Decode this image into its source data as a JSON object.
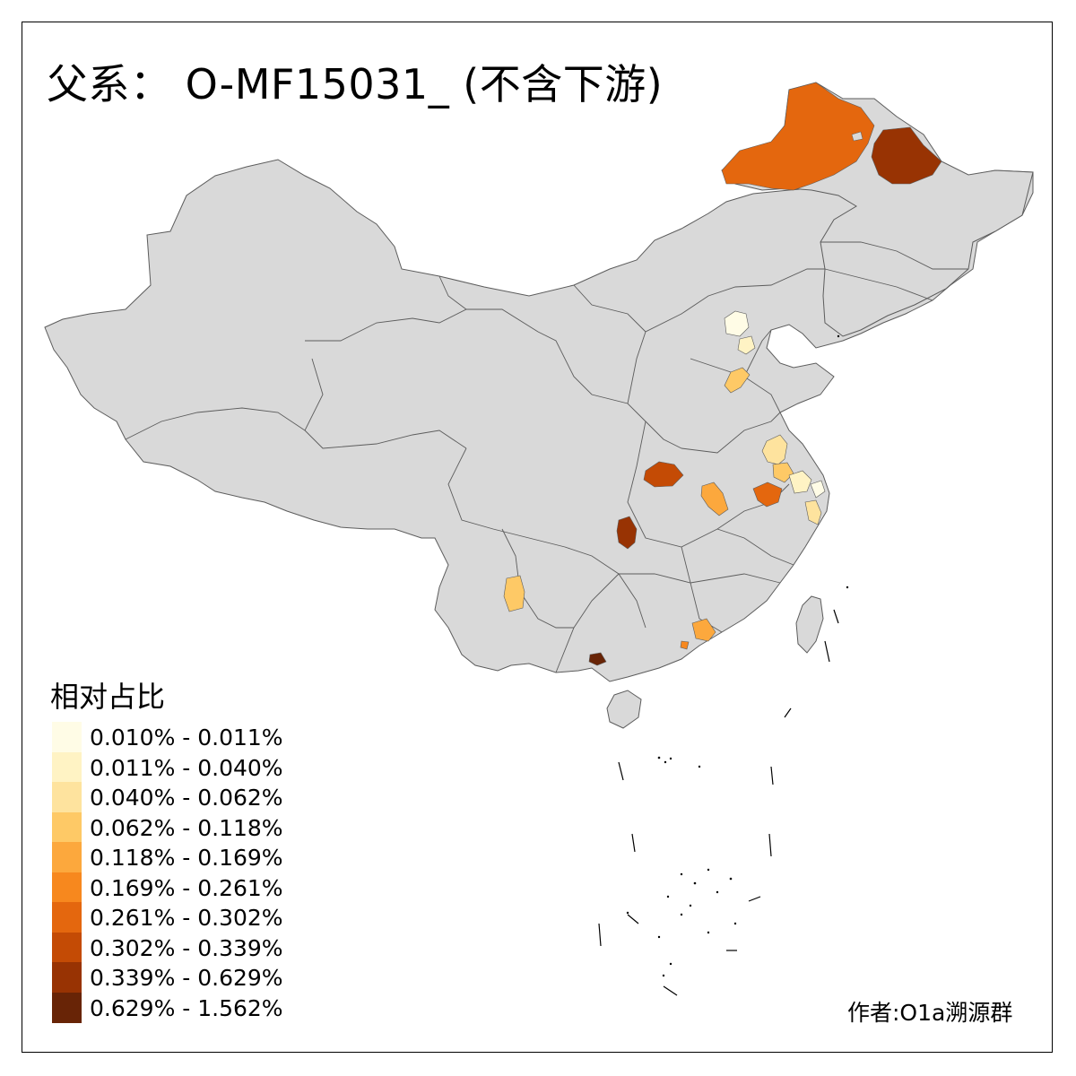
{
  "title": "父系： O-MF15031_ (不含下游)",
  "credit": "作者:O1a溯源群",
  "legend": {
    "title": "相对占比",
    "items": [
      {
        "label": "0.010% - 0.011%",
        "color": "#FFFCE6"
      },
      {
        "label": "0.011% - 0.040%",
        "color": "#FFF3C4"
      },
      {
        "label": "0.040% - 0.062%",
        "color": "#FEE39E"
      },
      {
        "label": "0.062% - 0.118%",
        "color": "#FEC966"
      },
      {
        "label": "0.118% - 0.169%",
        "color": "#FCA83D"
      },
      {
        "label": "0.169% - 0.261%",
        "color": "#F7881E"
      },
      {
        "label": "0.261% - 0.302%",
        "color": "#E4670E"
      },
      {
        "label": "0.302% - 0.339%",
        "color": "#C44B05"
      },
      {
        "label": "0.339% - 0.629%",
        "color": "#983303"
      },
      {
        "label": "0.629% - 1.562%",
        "color": "#682406"
      }
    ]
  },
  "colors": {
    "land": "#D9D9D9",
    "border": "#5C5C5C"
  }
}
